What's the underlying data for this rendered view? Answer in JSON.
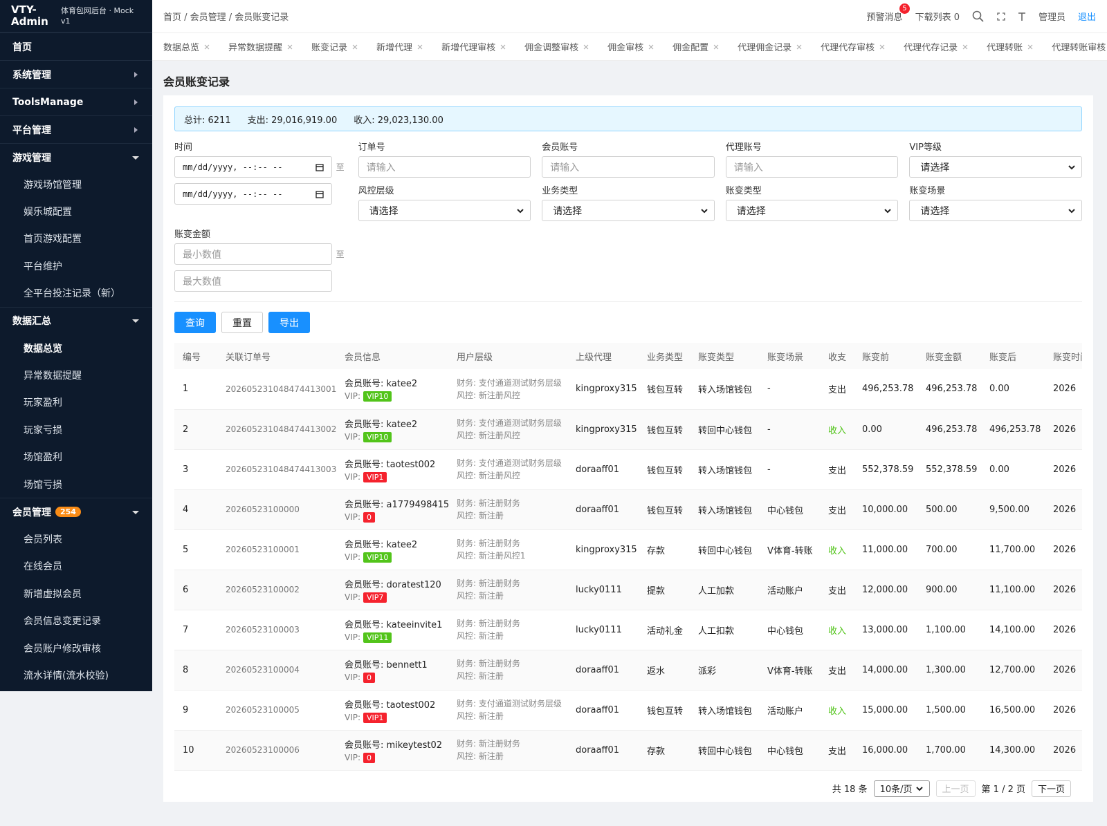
{
  "sidebar": {
    "brand": "VTY-Admin",
    "subtitle": "体育包网后台 · Mock v1",
    "menu": [
      {
        "label": "首页"
      },
      {
        "label": "系统管理",
        "expanded": false
      },
      {
        "label": "ToolsManage",
        "expanded": false
      },
      {
        "label": "平台管理",
        "expanded": false
      },
      {
        "label": "游戏管理",
        "expanded": true,
        "children": [
          "游戏场馆管理",
          "娱乐城配置",
          "首页游戏配置",
          "平台维护",
          "全平台投注记录（新）"
        ]
      },
      {
        "label": "数据汇总",
        "expanded": true,
        "active_child": 0,
        "children": [
          "数据总览",
          "异常数据提醒",
          "玩家盈利",
          "玩家亏损",
          "场馆盈利",
          "场馆亏损"
        ]
      },
      {
        "label": "会员管理",
        "badge": 254,
        "expanded": true,
        "children": [
          "会员列表",
          "在线会员",
          "新增虚拟会员",
          "会员信息变更记录",
          "会员账户修改审核",
          "流水详情(流水校验)"
        ]
      }
    ]
  },
  "header": {
    "breadcrumb": "首页 / 会员管理 / 会员账变记录",
    "alerts": "预警消息",
    "alerts_count": 5,
    "downloads": "下载列表 0",
    "user": "管理员",
    "logout": "退出"
  },
  "tabs": [
    "数据总览",
    "异常数据提醒",
    "账变记录",
    "新增代理",
    "新增代理审核",
    "佣金调整审核",
    "佣金审核",
    "佣金配置",
    "代理佣金记录",
    "代理代存审核",
    "代理代存记录",
    "代理转账",
    "代理转账审核"
  ],
  "page_title": "会员账变记录",
  "summary": [
    "总计: 6211",
    "支出: 29,016,919.00",
    "收入: 29,023,130.00"
  ],
  "filters": {
    "range_sep": "至",
    "fields": [
      {
        "label": "时间",
        "kind": "datetime",
        "placeholders": [
          "mm/dd/yyyy, --:-- --",
          "mm/dd/yyyy, --:-- --"
        ]
      },
      {
        "label": "订单号",
        "kind": "input",
        "placeholder": "请输入"
      },
      {
        "label": "会员账号",
        "kind": "input",
        "placeholder": "请输入"
      },
      {
        "label": "代理账号",
        "kind": "input",
        "placeholder": "请输入"
      },
      {
        "label": "VIP等级",
        "kind": "select",
        "placeholder": "请选择"
      },
      {
        "label": "风控层级",
        "kind": "select",
        "placeholder": "请选择"
      },
      {
        "label": "业务类型",
        "kind": "select",
        "placeholder": "请选择"
      },
      {
        "label": "账变类型",
        "kind": "select",
        "placeholder": "请选择"
      },
      {
        "label": "账变场景",
        "kind": "select",
        "placeholder": "请选择"
      },
      {
        "label": "账变金额",
        "kind": "range",
        "placeholders": [
          "最小数值",
          "最大数值"
        ]
      }
    ]
  },
  "buttons": [
    {
      "label": "查询",
      "primary": true
    },
    {
      "label": "重置",
      "primary": false
    },
    {
      "label": "导出",
      "primary": true
    }
  ],
  "table": {
    "columns": [
      "编号",
      "关联订单号",
      "会员信息",
      "用户层级",
      "上级代理",
      "业务类型",
      "账变类型",
      "账变场景",
      "收支",
      "账变前",
      "账变金额",
      "账变后",
      "账变时间"
    ],
    "vip_label": "VIP:",
    "rows": [
      {
        "id": "1",
        "order_no": "202605231048474413001",
        "account": "会员账号: katee2",
        "vip": "VIP10",
        "vip_color": "#52c41a",
        "finance_layer": "财务: 支付通道测试财务层级",
        "risk_layer": "风控: 新注册风控",
        "agent": "kingproxy315",
        "biz_type": "钱包互转",
        "change_type": "转入场馆钱包",
        "scene": "-",
        "direction": "支出",
        "direction_color": "#222222",
        "before": "496,253.78",
        "amount": "496,253.78",
        "after": "0.00",
        "time": "2026"
      },
      {
        "id": "2",
        "order_no": "202605231048474413002",
        "account": "会员账号: katee2",
        "vip": "VIP10",
        "vip_color": "#52c41a",
        "finance_layer": "财务: 支付通道测试财务层级",
        "risk_layer": "风控: 新注册风控",
        "agent": "kingproxy315",
        "biz_type": "钱包互转",
        "change_type": "转回中心钱包",
        "scene": "-",
        "direction": "收入",
        "direction_color": "#52c41a",
        "before": "0.00",
        "amount": "496,253.78",
        "after": "496,253.78",
        "time": "2026"
      },
      {
        "id": "3",
        "order_no": "202605231048474413003",
        "account": "会员账号: taotest002",
        "vip": "VIP1",
        "vip_color": "#f5222d",
        "finance_layer": "财务: 支付通道测试财务层级",
        "risk_layer": "风控: 新注册风控",
        "agent": "doraaff01",
        "biz_type": "钱包互转",
        "change_type": "转入场馆钱包",
        "scene": "-",
        "direction": "支出",
        "direction_color": "#222222",
        "before": "552,378.59",
        "amount": "552,378.59",
        "after": "0.00",
        "time": "2026"
      },
      {
        "id": "4",
        "order_no": "20260523100000",
        "account": "会员账号: a1779498415",
        "vip": "0",
        "vip_color": "#f5222d",
        "finance_layer": "财务: 新注册财务",
        "risk_layer": "风控: 新注册",
        "agent": "doraaff01",
        "biz_type": "钱包互转",
        "change_type": "转入场馆钱包",
        "scene": "中心钱包",
        "direction": "支出",
        "direction_color": "#222222",
        "before": "10,000.00",
        "amount": "500.00",
        "after": "9,500.00",
        "time": "2026"
      },
      {
        "id": "5",
        "order_no": "20260523100001",
        "account": "会员账号: katee2",
        "vip": "VIP10",
        "vip_color": "#52c41a",
        "finance_layer": "财务: 新注册财务",
        "risk_layer": "风控: 新注册风控1",
        "agent": "kingproxy315",
        "biz_type": "存款",
        "change_type": "转回中心钱包",
        "scene": "V体育-转账",
        "direction": "收入",
        "direction_color": "#52c41a",
        "before": "11,000.00",
        "amount": "700.00",
        "after": "11,700.00",
        "time": "2026"
      },
      {
        "id": "6",
        "order_no": "20260523100002",
        "account": "会员账号: doratest120",
        "vip": "VIP7",
        "vip_color": "#f5222d",
        "finance_layer": "财务: 新注册财务",
        "risk_layer": "风控: 新注册",
        "agent": "lucky0111",
        "biz_type": "提款",
        "change_type": "人工加款",
        "scene": "活动账户",
        "direction": "支出",
        "direction_color": "#222222",
        "before": "12,000.00",
        "amount": "900.00",
        "after": "11,100.00",
        "time": "2026"
      },
      {
        "id": "7",
        "order_no": "20260523100003",
        "account": "会员账号: kateeinvite1",
        "vip": "VIP11",
        "vip_color": "#52c41a",
        "finance_layer": "财务: 新注册财务",
        "risk_layer": "风控: 新注册",
        "agent": "lucky0111",
        "biz_type": "活动礼金",
        "change_type": "人工扣款",
        "scene": "中心钱包",
        "direction": "收入",
        "direction_color": "#52c41a",
        "before": "13,000.00",
        "amount": "1,100.00",
        "after": "14,100.00",
        "time": "2026"
      },
      {
        "id": "8",
        "order_no": "20260523100004",
        "account": "会员账号: bennett1",
        "vip": "0",
        "vip_color": "#f5222d",
        "finance_layer": "财务: 新注册财务",
        "risk_layer": "风控: 新注册",
        "agent": "doraaff01",
        "biz_type": "返水",
        "change_type": "派彩",
        "scene": "V体育-转账",
        "direction": "支出",
        "direction_color": "#222222",
        "before": "14,000.00",
        "amount": "1,300.00",
        "after": "12,700.00",
        "time": "2026"
      },
      {
        "id": "9",
        "order_no": "20260523100005",
        "account": "会员账号: taotest002",
        "vip": "VIP1",
        "vip_color": "#f5222d",
        "finance_layer": "财务: 支付通道测试财务层级",
        "risk_layer": "风控: 新注册",
        "agent": "doraaff01",
        "biz_type": "钱包互转",
        "change_type": "转入场馆钱包",
        "scene": "活动账户",
        "direction": "收入",
        "direction_color": "#52c41a",
        "before": "15,000.00",
        "amount": "1,500.00",
        "after": "16,500.00",
        "time": "2026"
      },
      {
        "id": "10",
        "order_no": "20260523100006",
        "account": "会员账号: mikeytest02",
        "vip": "0",
        "vip_color": "#f5222d",
        "finance_layer": "财务: 新注册财务",
        "risk_layer": "风控: 新注册",
        "agent": "doraaff01",
        "biz_type": "存款",
        "change_type": "转回中心钱包",
        "scene": "中心钱包",
        "direction": "支出",
        "direction_color": "#222222",
        "before": "16,000.00",
        "amount": "1,700.00",
        "after": "14,300.00",
        "time": "2026"
      }
    ]
  },
  "pagination": {
    "total": "共 18 条",
    "page_size": "10条/页",
    "prev": "上一页",
    "page": "第 1 / 2 页",
    "next": "下一页"
  }
}
